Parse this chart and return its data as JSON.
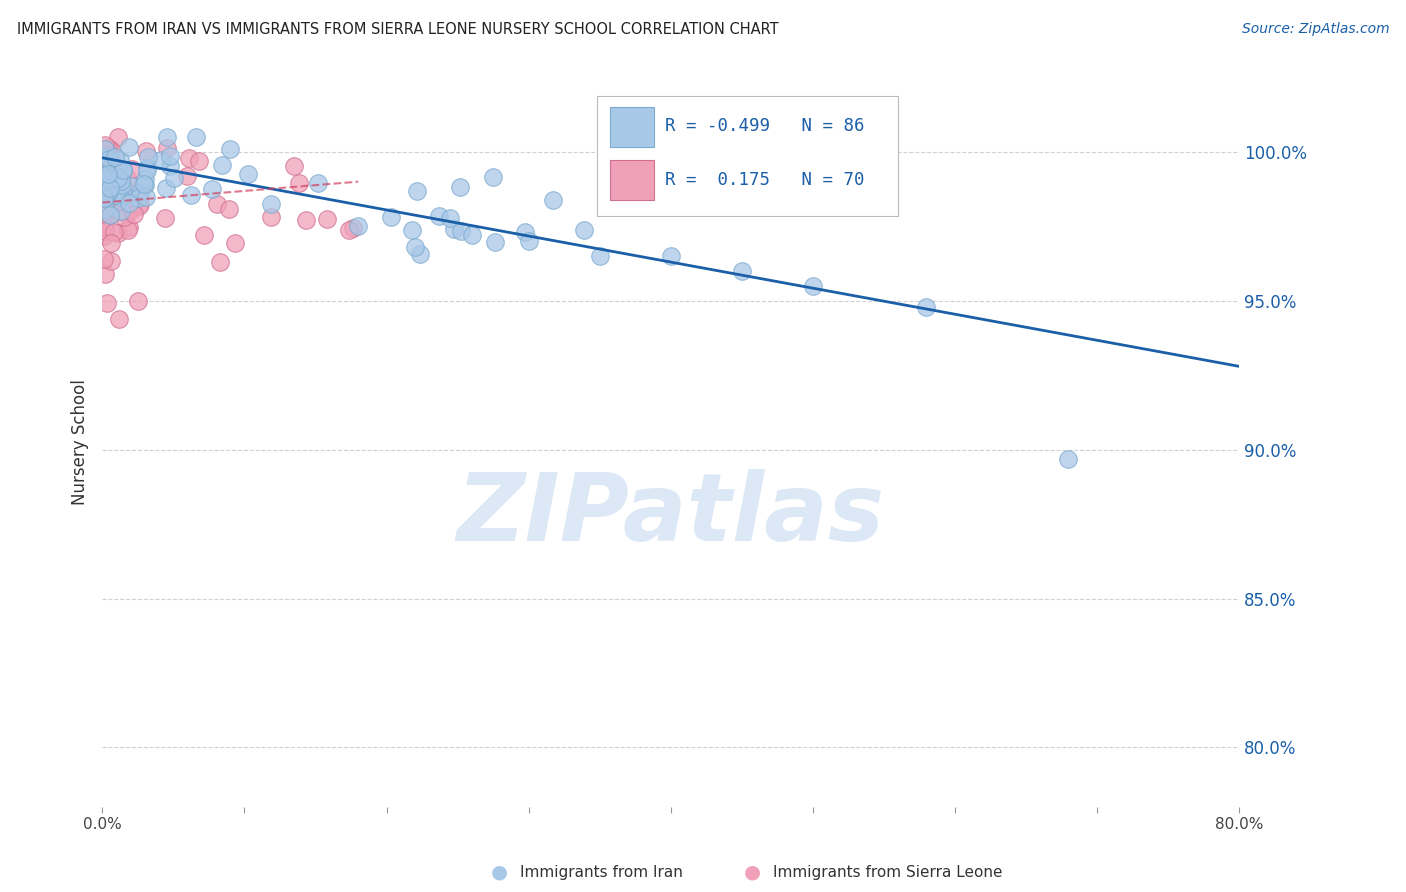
{
  "title": "IMMIGRANTS FROM IRAN VS IMMIGRANTS FROM SIERRA LEONE NURSERY SCHOOL CORRELATION CHART",
  "source": "Source: ZipAtlas.com",
  "ylabel": "Nursery School",
  "ytick_labels": [
    "100.0%",
    "95.0%",
    "90.0%",
    "85.0%",
    "80.0%"
  ],
  "ytick_values": [
    1.0,
    0.95,
    0.9,
    0.85,
    0.8
  ],
  "xlim": [
    0.0,
    0.8
  ],
  "ylim": [
    0.78,
    1.025
  ],
  "iran_color": "#a8c8e8",
  "iran_edge_color": "#7aaace",
  "sierraleone_color": "#f0a0b8",
  "sierraleone_edge_color": "#d07090",
  "trend_iran_color": "#1a5fa8",
  "trend_sierraleone_color": "#d04060",
  "watermark_text": "ZIPatlas",
  "watermark_color": "#dce8f5",
  "grid_color": "#cccccc",
  "background_color": "#ffffff",
  "iran_trend_x": [
    0.0,
    0.8
  ],
  "iran_trend_y": [
    0.998,
    0.928
  ],
  "sierraleone_trend_x": [
    0.0,
    0.18
  ],
  "sierraleone_trend_y": [
    0.983,
    0.99
  ],
  "legend_iran_label": "R = -0.499   N = 86",
  "legend_sl_label": "R =  0.175   N = 70",
  "bottom_legend_iran": "Immigrants from Iran",
  "bottom_legend_sl": "Immigrants from Sierra Leone"
}
